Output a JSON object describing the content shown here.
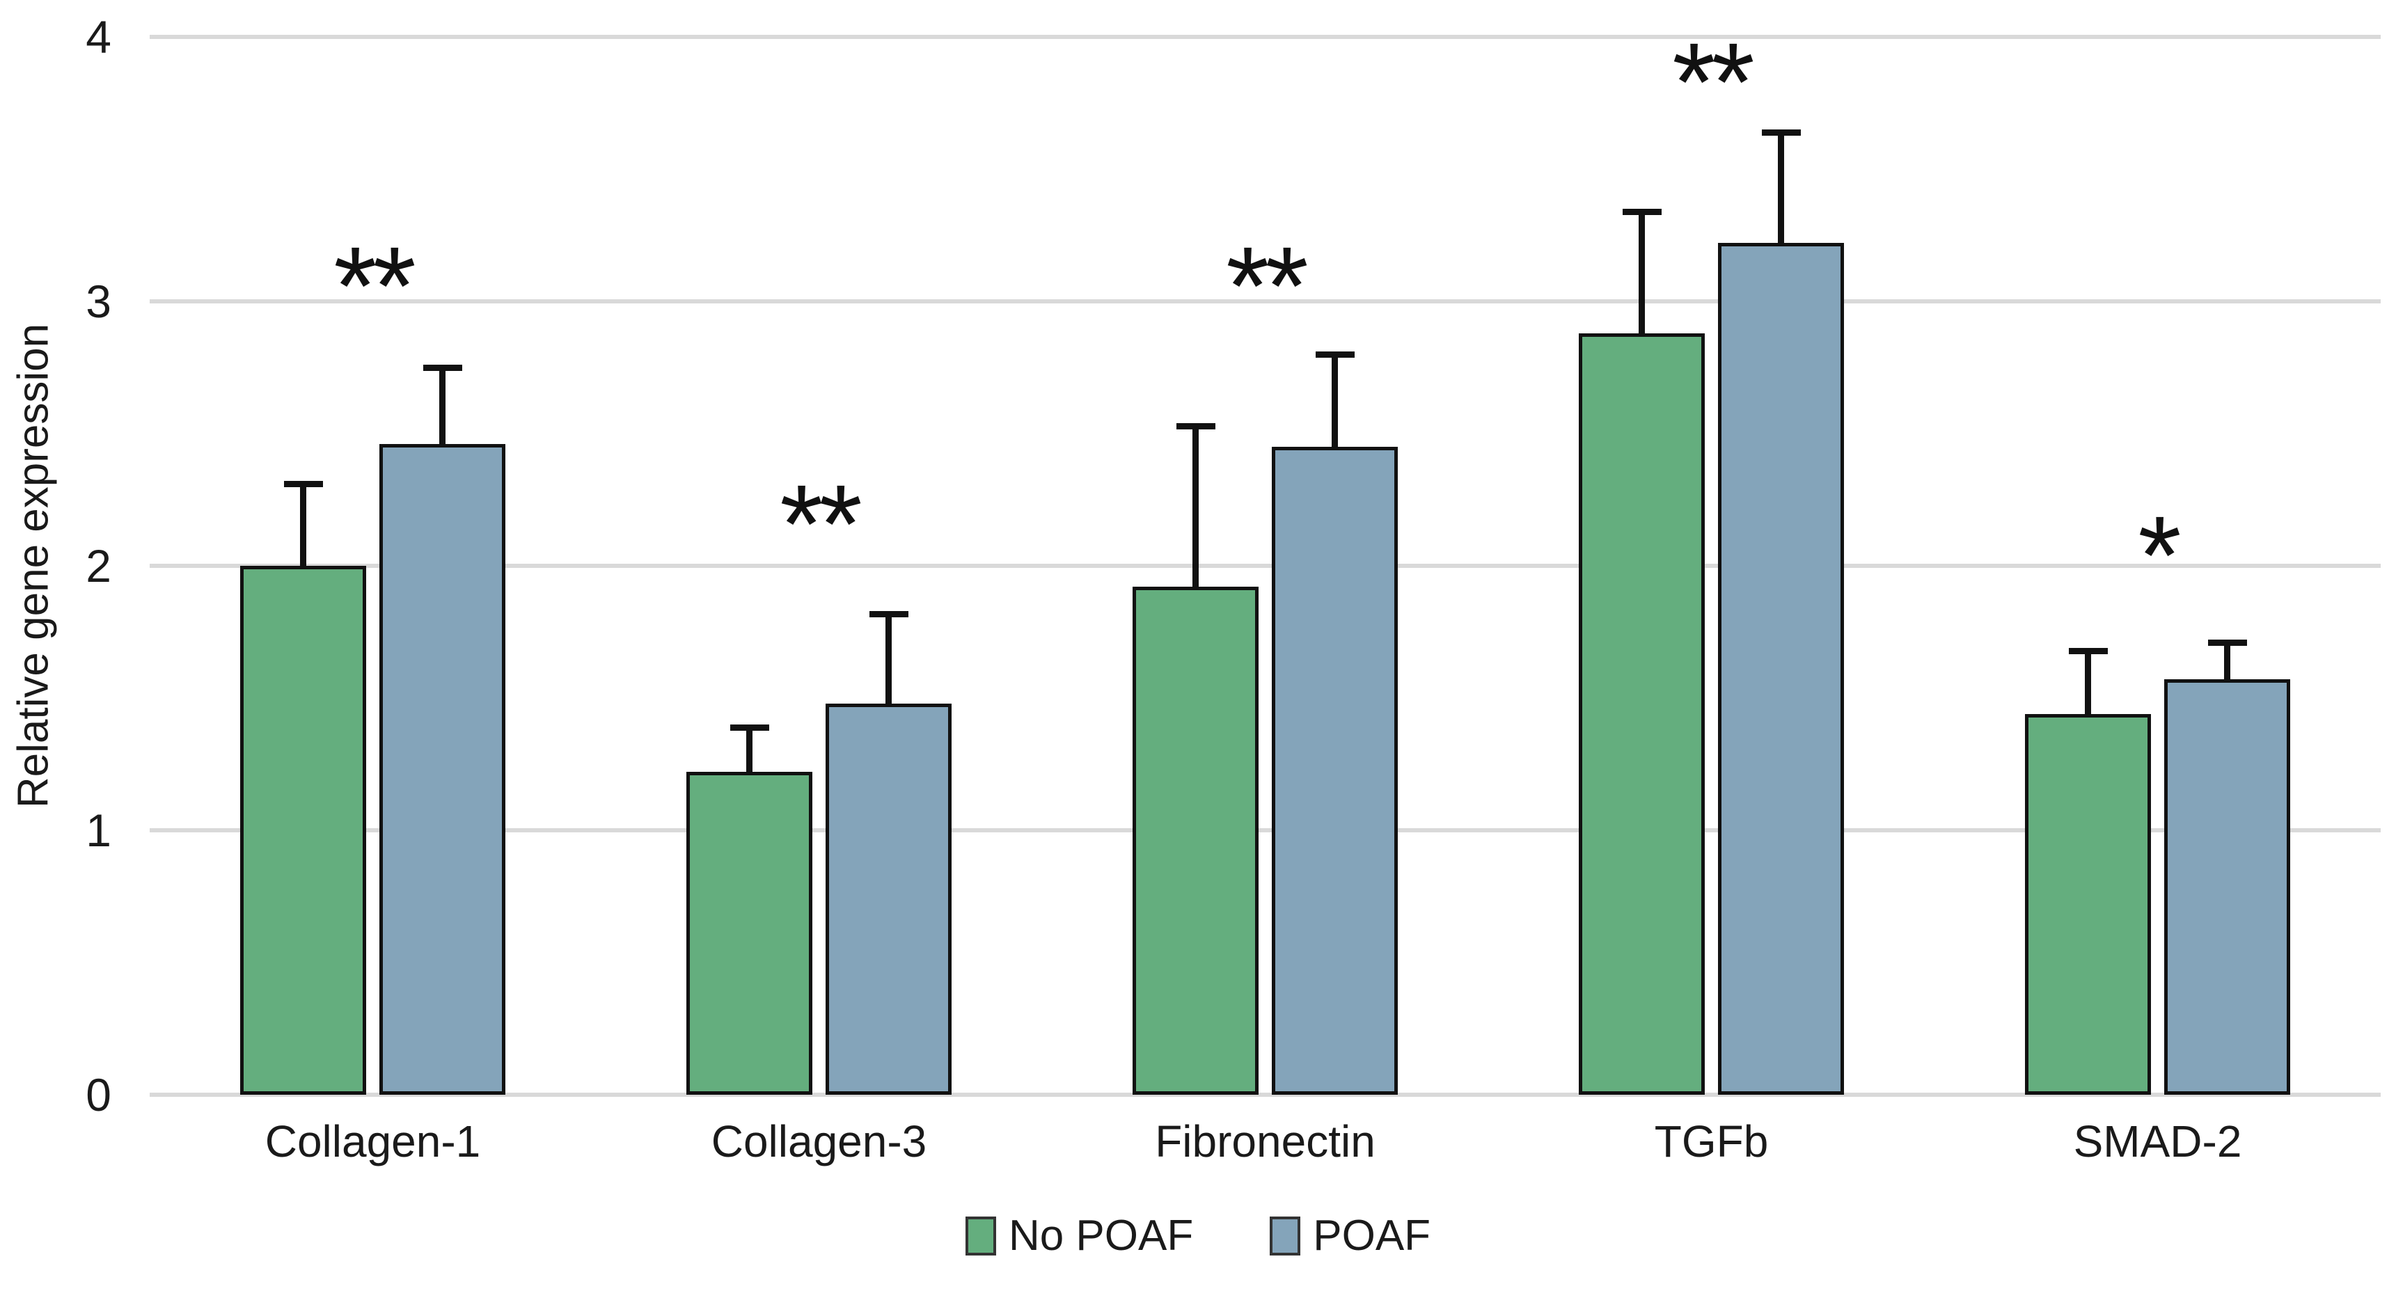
{
  "chart_data": {
    "type": "bar",
    "title": "",
    "ylabel": "Relative gene expression",
    "xlabel": "",
    "ylim": [
      0,
      4
    ],
    "yticks": [
      0,
      1,
      2,
      3,
      4
    ],
    "grid": "horizontal",
    "gridline_color": "#d9d9d9",
    "background_color": "#ffffff",
    "bar_outline_color": "#111111",
    "error_bar_color": "#111111",
    "legend_position": "bottom-center",
    "categories": [
      "Collagen-1",
      "Collagen-3",
      "Fibronectin",
      "TGFb",
      "SMAD-2"
    ],
    "series": [
      {
        "name": "No POAF",
        "color": "#64AE7E",
        "values": [
          2.0,
          1.22,
          1.92,
          2.88,
          1.44
        ],
        "error_up": [
          0.32,
          0.18,
          0.62,
          0.47,
          0.25
        ]
      },
      {
        "name": "POAF",
        "color": "#84A4BA",
        "values": [
          2.46,
          1.48,
          2.45,
          3.22,
          1.57
        ],
        "error_up": [
          0.3,
          0.35,
          0.36,
          0.43,
          0.15
        ]
      }
    ],
    "significance": [
      {
        "category": "Collagen-1",
        "marker": "**",
        "y": 3.08
      },
      {
        "category": "Collagen-3",
        "marker": "**",
        "y": 2.18
      },
      {
        "category": "Fibronectin",
        "marker": "**",
        "y": 3.08
      },
      {
        "category": "TGFb",
        "marker": "**",
        "y": 3.85
      },
      {
        "category": "SMAD-2",
        "marker": "*",
        "y": 2.06
      }
    ],
    "legend": [
      "No POAF",
      "POAF"
    ]
  },
  "layout_note": "grouped bar chart with upper error bars and significance asterisks"
}
